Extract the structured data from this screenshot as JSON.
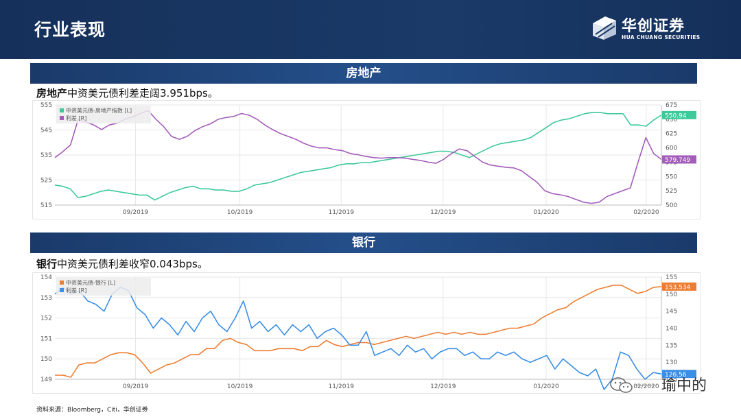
{
  "header": {
    "title": "行业表现",
    "logo_cn": "华创证券",
    "logo_en": "HUA CHUANG SECURITIES"
  },
  "sections": [
    {
      "band_title": "房地产",
      "caption_bold": "房地产",
      "caption_rest": "中资美元债利差走阔3.951bps。"
    },
    {
      "band_title": "银行",
      "caption_bold": "银行",
      "caption_rest": "中资美元债利差收窄0.043bps。"
    }
  ],
  "source": "资料来源：Bloomberg，Citi，华创证券",
  "watermark": "瑜中的",
  "chart_data": [
    {
      "type": "line",
      "x_ticks": [
        "09/2019",
        "10/2019",
        "11/2019",
        "12/2019",
        "01/2020",
        "02/2020"
      ],
      "y_left": {
        "min": 515,
        "max": 555,
        "ticks": [
          515,
          525,
          535,
          545,
          555
        ]
      },
      "y_right": {
        "min": 500,
        "max": 675,
        "ticks": [
          500,
          525,
          550,
          575,
          600,
          625,
          650,
          675
        ]
      },
      "grid": true,
      "legend_position": "top-left",
      "series": [
        {
          "name": "中资美元债-房地产指数 [L]",
          "axis": "left",
          "color": "#3ec99a",
          "last_label": "550.94",
          "values": [
            523.0,
            522.5,
            521.5,
            518.0,
            518.5,
            519.5,
            520.5,
            521.0,
            520.5,
            520.0,
            519.5,
            519.0,
            519.0,
            517.0,
            518.5,
            520.0,
            521.0,
            522.0,
            522.5,
            521.5,
            521.5,
            521.0,
            521.0,
            520.5,
            520.5,
            521.5,
            523.0,
            523.5,
            524.0,
            525.0,
            526.0,
            527.0,
            528.0,
            528.5,
            529.0,
            529.5,
            530.0,
            531.0,
            531.5,
            531.5,
            532.0,
            532.0,
            532.5,
            533.0,
            533.5,
            534.0,
            534.5,
            535.0,
            535.5,
            536.0,
            536.5,
            536.5,
            536.0,
            535.0,
            534.0,
            535.5,
            537.0,
            538.5,
            539.5,
            540.0,
            540.5,
            541.0,
            542.0,
            544.0,
            546.0,
            548.0,
            549.0,
            549.5,
            550.5,
            551.5,
            552.0,
            552.0,
            551.5,
            551.5,
            551.5,
            547.0,
            547.0,
            546.5,
            549.0,
            550.94
          ]
        },
        {
          "name": "利差 [R]",
          "axis": "right",
          "color": "#a45dba",
          "last_label": "579.749",
          "values": [
            583,
            593,
            605,
            650,
            645,
            640,
            632,
            640,
            643,
            650,
            654,
            660,
            665,
            650,
            637,
            620,
            615,
            620,
            630,
            637,
            642,
            650,
            653,
            655,
            660,
            657,
            650,
            640,
            632,
            625,
            620,
            615,
            608,
            603,
            600,
            600,
            597,
            595,
            590,
            588,
            585,
            583,
            582,
            583,
            583,
            582,
            580,
            578,
            575,
            573,
            580,
            590,
            598,
            595,
            585,
            575,
            570,
            568,
            566,
            565,
            560,
            550,
            540,
            525,
            520,
            518,
            515,
            510,
            505,
            503,
            505,
            515,
            520,
            525,
            530,
            575,
            618,
            590,
            579.749
          ]
        }
      ]
    },
    {
      "type": "line",
      "x_ticks": [
        "09/2019",
        "10/2019",
        "11/2019",
        "12/2019",
        "01/2020",
        "02/2020"
      ],
      "y_left": {
        "min": 149,
        "max": 154,
        "ticks": [
          149,
          150,
          151,
          152,
          153,
          154
        ]
      },
      "y_right": {
        "min": 125,
        "max": 155,
        "ticks": [
          125,
          130,
          135,
          140,
          145,
          150,
          155
        ]
      },
      "grid": true,
      "legend_position": "top-left",
      "series": [
        {
          "name": "中资美元债-银行 [L]",
          "axis": "left",
          "color": "#ed7d31",
          "last_label": "153.534",
          "values": [
            149.2,
            149.2,
            149.1,
            149.7,
            149.8,
            149.8,
            150.0,
            150.2,
            150.3,
            150.3,
            150.2,
            149.8,
            149.3,
            149.5,
            149.7,
            149.8,
            150.0,
            150.2,
            150.2,
            150.5,
            150.5,
            150.9,
            151.0,
            150.8,
            150.7,
            150.4,
            150.4,
            150.4,
            150.5,
            150.5,
            150.5,
            150.4,
            150.6,
            150.6,
            150.9,
            150.7,
            150.6,
            150.7,
            150.8,
            150.8,
            150.7,
            150.8,
            150.9,
            151.0,
            151.1,
            151.0,
            151.1,
            151.2,
            151.3,
            151.2,
            151.3,
            151.2,
            151.3,
            151.2,
            151.2,
            151.3,
            151.4,
            151.5,
            151.5,
            151.6,
            151.7,
            152.0,
            152.2,
            152.4,
            152.5,
            152.8,
            153.0,
            153.2,
            153.4,
            153.5,
            153.6,
            153.6,
            153.4,
            153.2,
            153.3,
            153.5,
            153.534
          ]
        },
        {
          "name": "利差 [R]",
          "axis": "right",
          "color": "#3a8ee6",
          "last_label": "126.56",
          "values": [
            150,
            152,
            150,
            151,
            148,
            147,
            145,
            150,
            152,
            151,
            146,
            144,
            140,
            143,
            141,
            138,
            142,
            139,
            143,
            145,
            141,
            139,
            143,
            148,
            140,
            142,
            139,
            141,
            138,
            141,
            139,
            141,
            137,
            139,
            140,
            138,
            135,
            135,
            139,
            132,
            133,
            134,
            132,
            135,
            133,
            134,
            131,
            133,
            134,
            134,
            132,
            133,
            131,
            131,
            133,
            132,
            133,
            131,
            130,
            131,
            132,
            128,
            131,
            129,
            127,
            126,
            128,
            122,
            125,
            133,
            132,
            128,
            125,
            127,
            126.56
          ]
        }
      ]
    }
  ]
}
